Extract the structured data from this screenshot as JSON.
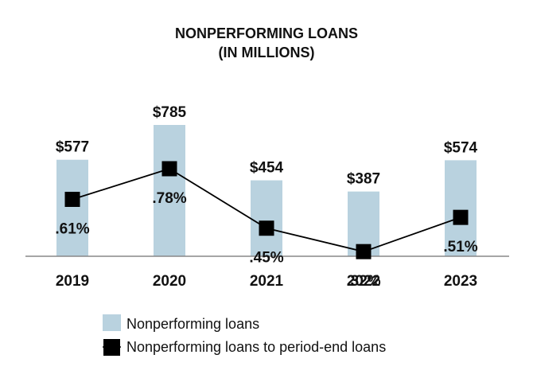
{
  "chart_data": {
    "type": "bar",
    "title": "NONPERFORMING LOANS",
    "subtitle": "(IN MILLIONS)",
    "categories": [
      "2019",
      "2020",
      "2021",
      "2022",
      "2023"
    ],
    "series": [
      {
        "name": "Nonperforming loans",
        "type": "bar",
        "values": [
          577,
          785,
          454,
          387,
          574
        ],
        "labels": [
          "$577",
          "$785",
          "$454",
          "$387",
          "$574"
        ],
        "color": "#b9d2df"
      },
      {
        "name": "Nonperforming loans to period-end loans",
        "type": "line",
        "values": [
          0.61,
          0.78,
          0.45,
          0.32,
          0.51
        ],
        "labels": [
          ".61%",
          ".78%",
          ".45%",
          ".32%",
          ".51%"
        ],
        "color": "#000000"
      }
    ],
    "legend_position": "bottom",
    "grid": false,
    "ylim": [
      0,
      785
    ],
    "y2lim": [
      0.1,
      0.78
    ]
  }
}
